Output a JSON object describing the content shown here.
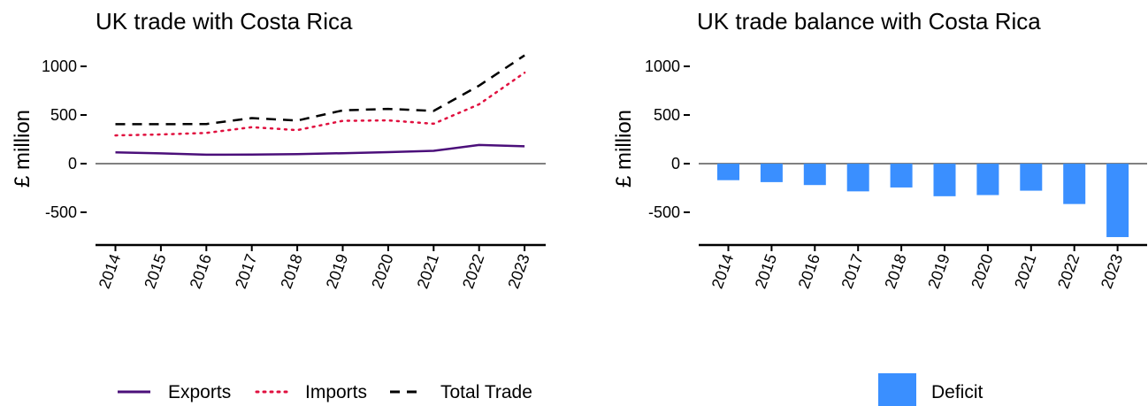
{
  "chart_data": [
    {
      "type": "line",
      "title": "UK trade with Costa Rica",
      "ylabel": "£ million",
      "xlabel": "",
      "x": [
        "2014",
        "2015",
        "2016",
        "2017",
        "2018",
        "2019",
        "2020",
        "2021",
        "2022",
        "2023"
      ],
      "yticks": [
        1000,
        500,
        0,
        -500
      ],
      "ytick_labels": [
        "1000",
        "500",
        "0",
        "-500"
      ],
      "ylim": [
        -830,
        1100
      ],
      "series": [
        {
          "name": "Exports",
          "color": "#4B0F7A",
          "dash": "solid",
          "values": [
            115,
            105,
            92,
            93,
            98,
            107,
            118,
            132,
            192,
            178
          ]
        },
        {
          "name": "Imports",
          "color": "#E0103F",
          "dash": "dotted",
          "values": [
            290,
            300,
            315,
            375,
            345,
            440,
            445,
            410,
            610,
            935
          ]
        },
        {
          "name": "Total Trade",
          "color": "#000000",
          "dash": "dashed",
          "values": [
            405,
            405,
            407,
            468,
            443,
            547,
            563,
            542,
            802,
            1113
          ]
        }
      ],
      "legend_position": "bottom"
    },
    {
      "type": "bar",
      "title": "UK trade balance with Costa Rica",
      "ylabel": "£ million",
      "xlabel": "",
      "categories": [
        "2014",
        "2015",
        "2016",
        "2017",
        "2018",
        "2019",
        "2020",
        "2021",
        "2022",
        "2023"
      ],
      "yticks": [
        1000,
        500,
        0,
        -500
      ],
      "ytick_labels": [
        "1000",
        "500",
        "0",
        "-500"
      ],
      "ylim": [
        -830,
        1100
      ],
      "series": [
        {
          "name": "Deficit",
          "color": "#3A8FFF",
          "values": [
            -170,
            -190,
            -220,
            -285,
            -245,
            -335,
            -323,
            -278,
            -415,
            -755
          ]
        }
      ],
      "legend_position": "bottom"
    }
  ]
}
